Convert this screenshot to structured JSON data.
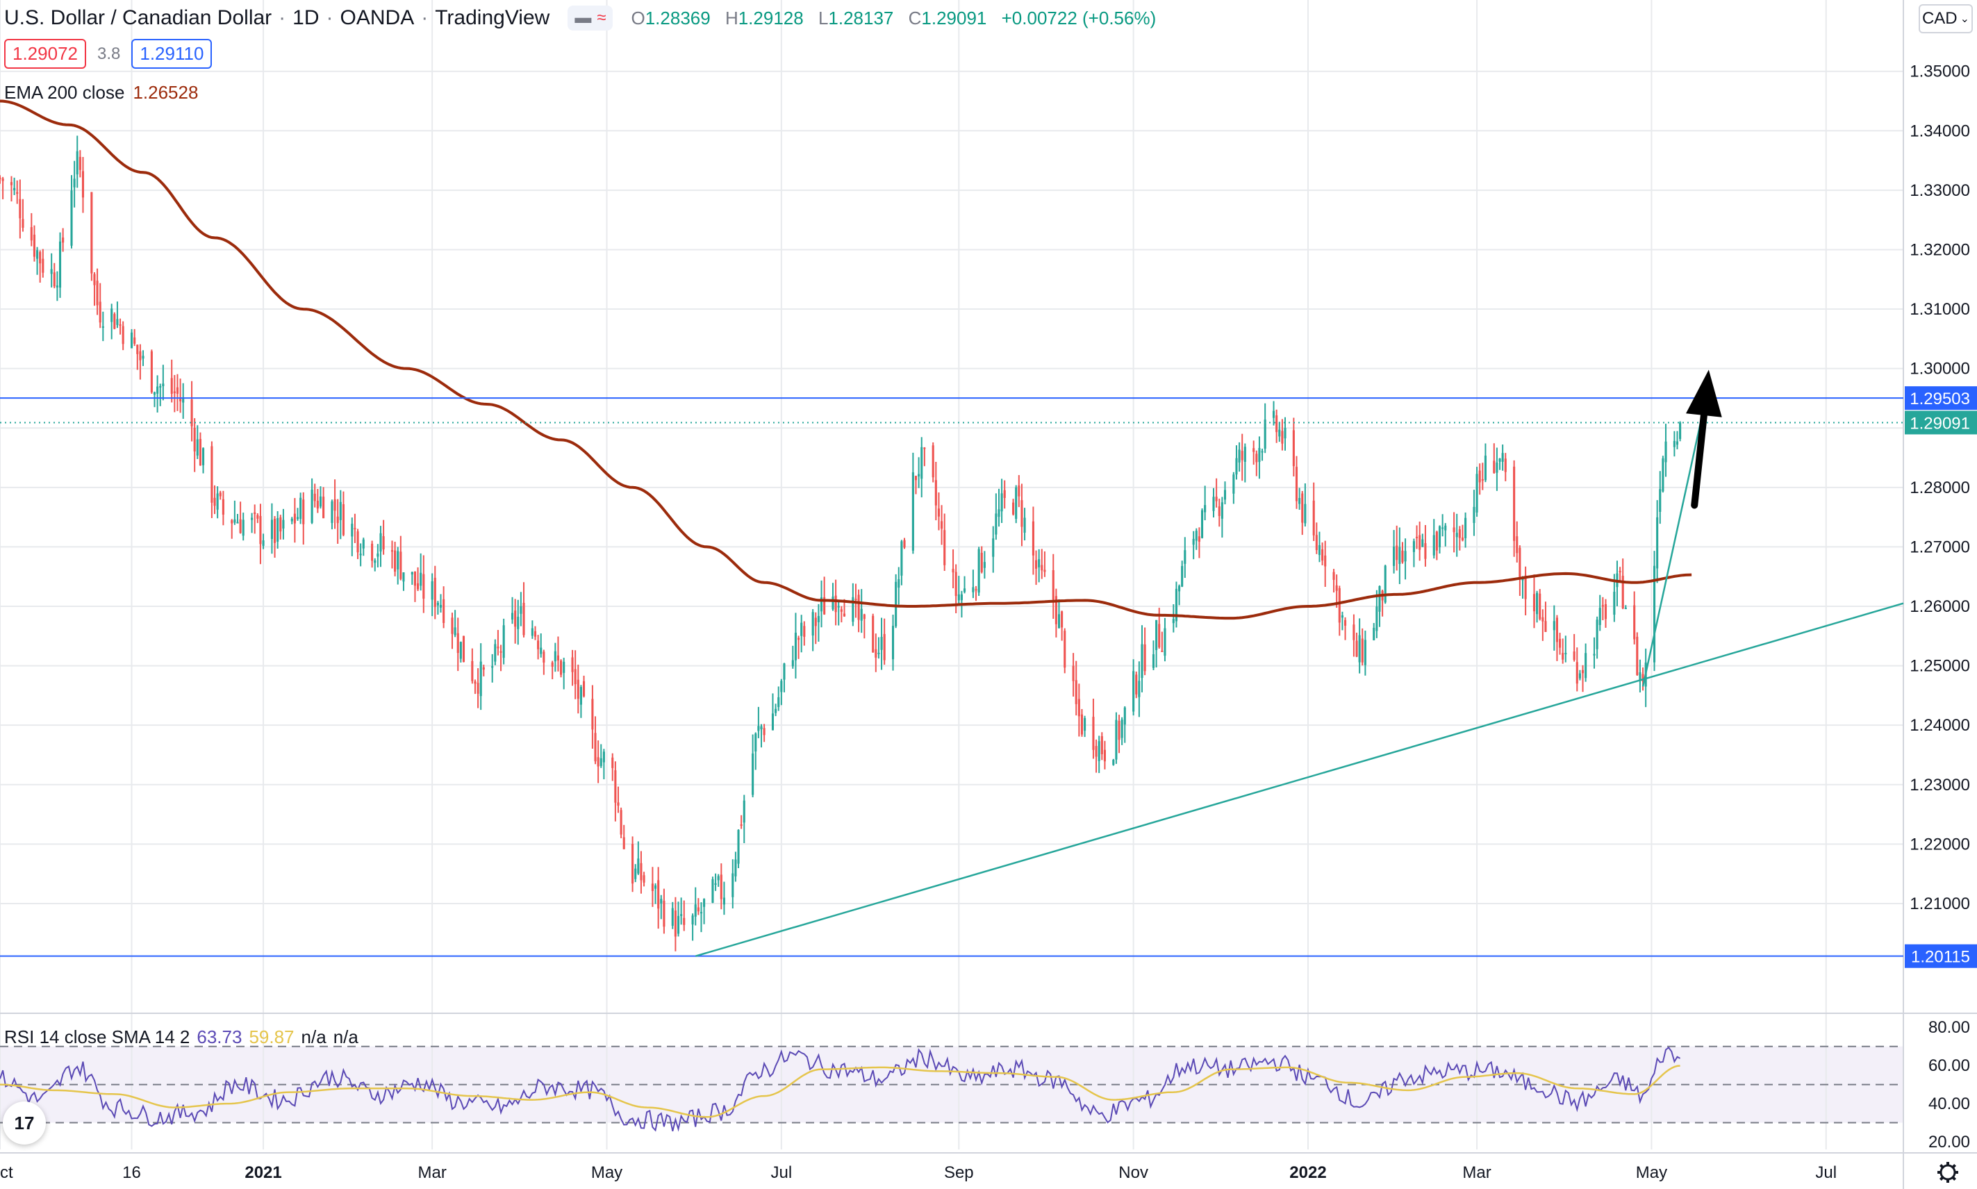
{
  "header": {
    "symbol": "U.S. Dollar / Canadian Dollar",
    "interval": "1D",
    "broker": "OANDA",
    "platform": "TradingView",
    "pill_icon": "≈",
    "open_label": "O",
    "open": "1.28369",
    "high_label": "H",
    "high": "1.29128",
    "low_label": "L",
    "low": "1.28137",
    "close_label": "C",
    "close": "1.29091",
    "change": "+0.00722 (+0.56%)"
  },
  "quote": {
    "sell": "1.29072",
    "spread": "3.8",
    "buy": "1.29110"
  },
  "indicator": {
    "label": "EMA 200 close",
    "value": "1.26528"
  },
  "rsi": {
    "label": "RSI 14 close SMA 14 2",
    "rsi_value": "63.73",
    "sma_value": "59.87",
    "na1": "n/a",
    "na2": "n/a"
  },
  "currency_select": "CAD",
  "logo_text": "17",
  "colors": {
    "up": "#26a69a",
    "down": "#ef5350",
    "ema": "#9c2b0c",
    "hline": "#2962ff",
    "trend": "#26a69a",
    "rsi": "#5b4ab5",
    "rsi_sma": "#e5c54c",
    "axis_text": "#131722",
    "grid": "#e8eaed",
    "arrow": "#000000"
  },
  "chart_data": [
    {
      "type": "candlestick",
      "axis": "right",
      "ylim": [
        1.192,
        1.362
      ],
      "ytick_labels": [
        "1.35000",
        "1.34000",
        "1.33000",
        "1.32000",
        "1.31000",
        "1.30000",
        "1.29000",
        "1.28000",
        "1.27000",
        "1.26000",
        "1.25000",
        "1.24000",
        "1.23000",
        "1.22000",
        "1.21000"
      ],
      "xtick_labels": [
        "Oct",
        "16",
        "2021",
        "Mar",
        "May",
        "Jul",
        "Sep",
        "Nov",
        "2022",
        "Mar",
        "May",
        "Jul"
      ],
      "xtick_dates": [
        "2020-10-01",
        "2020-11-16",
        "2021-01-01",
        "2021-03-01",
        "2021-05-01",
        "2021-07-01",
        "2021-09-01",
        "2021-11-01",
        "2022-01-01",
        "2022-03-01",
        "2022-05-01",
        "2022-07-01"
      ],
      "x_range": [
        "2020-10-01",
        "2022-07-28"
      ],
      "series_close_anchors": [
        [
          "2020-10-01",
          1.332
        ],
        [
          "2020-10-20",
          1.316
        ],
        [
          "2020-10-28",
          1.334
        ],
        [
          "2020-11-05",
          1.31
        ],
        [
          "2020-11-30",
          1.296
        ],
        [
          "2020-12-20",
          1.275
        ],
        [
          "2021-01-05",
          1.272
        ],
        [
          "2021-01-20",
          1.278
        ],
        [
          "2021-02-10",
          1.27
        ],
        [
          "2021-03-01",
          1.262
        ],
        [
          "2021-03-18",
          1.248
        ],
        [
          "2021-04-01",
          1.258
        ],
        [
          "2021-04-15",
          1.25
        ],
        [
          "2021-05-01",
          1.234
        ],
        [
          "2021-05-10",
          1.215
        ],
        [
          "2021-05-28",
          1.206
        ],
        [
          "2021-06-10",
          1.212
        ],
        [
          "2021-06-25",
          1.24
        ],
        [
          "2021-07-08",
          1.255
        ],
        [
          "2021-07-20",
          1.262
        ],
        [
          "2021-08-05",
          1.253
        ],
        [
          "2021-08-19",
          1.284
        ],
        [
          "2021-09-01",
          1.262
        ],
        [
          "2021-09-20",
          1.278
        ],
        [
          "2021-10-01",
          1.264
        ],
        [
          "2021-10-15",
          1.24
        ],
        [
          "2021-10-22",
          1.236
        ],
        [
          "2021-11-10",
          1.255
        ],
        [
          "2021-11-25",
          1.274
        ],
        [
          "2021-12-10",
          1.285
        ],
        [
          "2021-12-20",
          1.29
        ],
        [
          "2022-01-05",
          1.27
        ],
        [
          "2022-01-18",
          1.252
        ],
        [
          "2022-02-02",
          1.268
        ],
        [
          "2022-02-20",
          1.272
        ],
        [
          "2022-03-08",
          1.285
        ],
        [
          "2022-03-18",
          1.262
        ],
        [
          "2022-04-05",
          1.25
        ],
        [
          "2022-04-20",
          1.263
        ],
        [
          "2022-04-28",
          1.248
        ],
        [
          "2022-05-06",
          1.288
        ],
        [
          "2022-05-11",
          1.29091
        ]
      ],
      "last_close": 1.29091,
      "resistance": 1.29503,
      "support": 1.20115,
      "price_labels": {
        "resistance": "1.29503",
        "last": "1.29091",
        "support": "1.20115"
      },
      "trendlines": [
        {
          "from": [
            "2021-06-01",
            1.20115
          ],
          "to": [
            "2022-07-28",
            1.2605
          ]
        },
        {
          "from": [
            "2022-04-28",
            1.2465
          ],
          "to": [
            "2022-05-20",
            1.295
          ]
        }
      ],
      "arrow": {
        "from": [
          "2022-05-16",
          1.277
        ],
        "to": [
          "2022-05-21",
          1.2998
        ]
      }
    },
    {
      "type": "line",
      "name": "EMA 200 close",
      "axis": "right",
      "anchors": [
        [
          "2020-10-01",
          1.345
        ],
        [
          "2020-10-25",
          1.341
        ],
        [
          "2020-11-20",
          1.333
        ],
        [
          "2020-12-15",
          1.322
        ],
        [
          "2021-01-15",
          1.31
        ],
        [
          "2021-02-20",
          1.3
        ],
        [
          "2021-03-20",
          1.294
        ],
        [
          "2021-04-15",
          1.288
        ],
        [
          "2021-05-10",
          1.28
        ],
        [
          "2021-06-05",
          1.27
        ],
        [
          "2021-06-25",
          1.264
        ],
        [
          "2021-07-15",
          1.261
        ],
        [
          "2021-08-15",
          1.26
        ],
        [
          "2021-09-15",
          1.2605
        ],
        [
          "2021-10-15",
          1.261
        ],
        [
          "2021-11-10",
          1.2585
        ],
        [
          "2021-12-05",
          1.258
        ],
        [
          "2022-01-01",
          1.26
        ],
        [
          "2022-02-01",
          1.262
        ],
        [
          "2022-03-01",
          1.264
        ],
        [
          "2022-04-01",
          1.2655
        ],
        [
          "2022-04-25",
          1.264
        ],
        [
          "2022-05-15",
          1.2653
        ]
      ],
      "last_value": 1.26528
    },
    {
      "type": "line",
      "name": "RSI 14 close SMA 14 2",
      "ylim": [
        16,
        87
      ],
      "ytick_labels": [
        "80.00",
        "60.00",
        "40.00",
        "20.00"
      ],
      "band": [
        30,
        70
      ],
      "levels": [
        70,
        50,
        30
      ],
      "rsi_anchors": [
        [
          "2020-10-01",
          53
        ],
        [
          "2020-10-15",
          42
        ],
        [
          "2020-10-28",
          59
        ],
        [
          "2020-11-10",
          38
        ],
        [
          "2020-11-25",
          33
        ],
        [
          "2020-12-10",
          36
        ],
        [
          "2020-12-22",
          50
        ],
        [
          "2021-01-08",
          42
        ],
        [
          "2021-01-25",
          54
        ],
        [
          "2021-02-10",
          45
        ],
        [
          "2021-02-25",
          51
        ],
        [
          "2021-03-10",
          41
        ],
        [
          "2021-03-25",
          38
        ],
        [
          "2021-04-10",
          49
        ],
        [
          "2021-04-25",
          47
        ],
        [
          "2021-05-10",
          32
        ],
        [
          "2021-05-25",
          30
        ],
        [
          "2021-06-10",
          36
        ],
        [
          "2021-06-25",
          58
        ],
        [
          "2021-07-05",
          65
        ],
        [
          "2021-07-20",
          58
        ],
        [
          "2021-08-05",
          53
        ],
        [
          "2021-08-20",
          64
        ],
        [
          "2021-09-05",
          53
        ],
        [
          "2021-09-20",
          58
        ],
        [
          "2021-10-05",
          52
        ],
        [
          "2021-10-20",
          34
        ],
        [
          "2021-11-05",
          42
        ],
        [
          "2021-11-20",
          60
        ],
        [
          "2021-12-05",
          58
        ],
        [
          "2021-12-20",
          62
        ],
        [
          "2022-01-05",
          52
        ],
        [
          "2022-01-20",
          40
        ],
        [
          "2022-02-05",
          54
        ],
        [
          "2022-02-20",
          57
        ],
        [
          "2022-03-08",
          57
        ],
        [
          "2022-03-20",
          50
        ],
        [
          "2022-04-05",
          41
        ],
        [
          "2022-04-20",
          52
        ],
        [
          "2022-04-28",
          44
        ],
        [
          "2022-05-06",
          67
        ],
        [
          "2022-05-11",
          63.73
        ]
      ],
      "sma_anchors": [
        [
          "2020-10-01",
          50
        ],
        [
          "2020-10-20",
          47
        ],
        [
          "2020-11-10",
          45
        ],
        [
          "2020-12-01",
          38
        ],
        [
          "2020-12-20",
          40
        ],
        [
          "2021-01-10",
          46
        ],
        [
          "2021-02-01",
          48
        ],
        [
          "2021-02-20",
          48
        ],
        [
          "2021-03-15",
          44
        ],
        [
          "2021-04-05",
          42
        ],
        [
          "2021-04-25",
          46
        ],
        [
          "2021-05-15",
          38
        ],
        [
          "2021-06-05",
          33
        ],
        [
          "2021-06-25",
          44
        ],
        [
          "2021-07-15",
          58
        ],
        [
          "2021-08-05",
          59
        ],
        [
          "2021-08-25",
          57
        ],
        [
          "2021-09-15",
          56
        ],
        [
          "2021-10-05",
          54
        ],
        [
          "2021-10-25",
          42
        ],
        [
          "2021-11-15",
          46
        ],
        [
          "2021-12-05",
          58
        ],
        [
          "2021-12-25",
          59
        ],
        [
          "2022-01-15",
          51
        ],
        [
          "2022-02-05",
          47
        ],
        [
          "2022-02-25",
          54
        ],
        [
          "2022-03-15",
          56
        ],
        [
          "2022-04-05",
          48
        ],
        [
          "2022-04-25",
          45
        ],
        [
          "2022-05-11",
          59.87
        ]
      ],
      "last_rsi": 63.73,
      "last_sma": 59.87
    }
  ]
}
